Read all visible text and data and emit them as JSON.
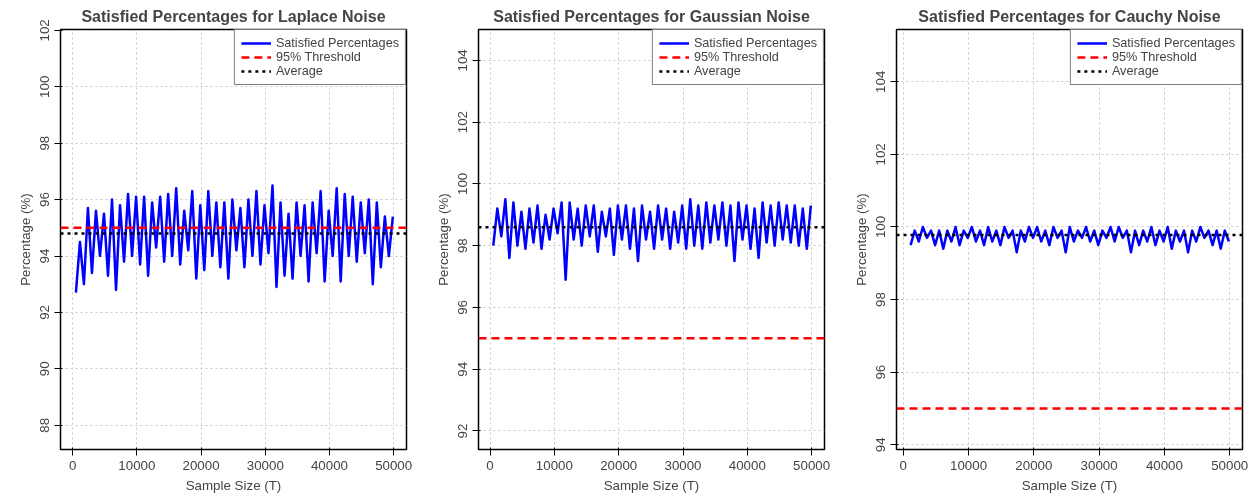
{
  "chart_data": [
    {
      "type": "line",
      "title": "Satisfied Percentages for Laplace Noise",
      "xlabel": "Sample Size (T)",
      "ylabel": "Percentage (%)",
      "xlim": [
        -1900,
        52000
      ],
      "ylim": [
        87.14,
        102.03
      ],
      "xticks": [
        0,
        10000,
        20000,
        30000,
        40000,
        50000
      ],
      "yticks": [
        88,
        90,
        92,
        94,
        96,
        98,
        100,
        102
      ],
      "grid": true,
      "legend": "top right",
      "line_style": "solid",
      "x": [
        500,
        1125,
        1750,
        2375,
        3000,
        3625,
        4250,
        4875,
        5500,
        6125,
        6750,
        7375,
        8000,
        8625,
        9250,
        9875,
        10500,
        11125,
        11750,
        12375,
        13000,
        13625,
        14250,
        14875,
        15500,
        16125,
        16750,
        17375,
        18000,
        18625,
        19250,
        19875,
        20500,
        21125,
        21750,
        22375,
        23000,
        23625,
        24250,
        24875,
        25500,
        26125,
        26750,
        27375,
        28000,
        28625,
        29250,
        29875,
        30500,
        31125,
        31750,
        32375,
        33000,
        33625,
        34250,
        34875,
        35500,
        36125,
        36750,
        37375,
        38000,
        38625,
        39250,
        39875,
        40500,
        41125,
        41750,
        42375,
        43000,
        43625,
        44250,
        44875,
        45500,
        46125,
        46750,
        47375,
        48000,
        48625,
        49250,
        49875
      ],
      "series": [
        {
          "name": "Satisfied Percentages",
          "color": "#0000ff",
          "values": [
            92.7,
            94.5,
            93.0,
            95.7,
            93.4,
            95.6,
            94.0,
            95.5,
            93.3,
            96.0,
            92.8,
            95.8,
            93.8,
            96.2,
            94.0,
            96.1,
            93.7,
            96.1,
            93.3,
            95.9,
            94.3,
            96.1,
            93.8,
            96.2,
            94.0,
            96.4,
            93.7,
            95.6,
            94.2,
            96.3,
            93.2,
            95.8,
            93.5,
            96.3,
            94.0,
            95.9,
            93.6,
            95.9,
            93.2,
            96.0,
            94.2,
            95.7,
            93.6,
            96.0,
            94.0,
            96.3,
            93.7,
            95.8,
            94.1,
            96.5,
            92.9,
            95.9,
            93.3,
            95.5,
            93.2,
            95.9,
            94.0,
            95.8,
            93.1,
            95.9,
            94.1,
            96.3,
            93.1,
            95.6,
            94.0,
            96.4,
            93.1,
            96.2,
            94.0,
            96.1,
            93.8,
            95.9,
            94.1,
            96.0,
            93.0,
            95.9,
            93.6,
            95.4,
            94.0,
            95.4
          ]
        }
      ],
      "ref_lines": [
        {
          "axis": "y",
          "value": 95,
          "label": "95% Threshold",
          "color": "#ff0000",
          "line_style": "dashed"
        },
        {
          "axis": "y",
          "value": 94.8,
          "label": "Average",
          "color": "#000000",
          "line_style": "dotted"
        }
      ]
    },
    {
      "type": "line",
      "title": "Satisfied Percentages for Gaussian Noise",
      "xlabel": "Sample Size (T)",
      "ylabel": "Percentage (%)",
      "xlim": [
        -1800,
        52000
      ],
      "ylim": [
        91.4,
        105.0
      ],
      "xticks": [
        0,
        10000,
        20000,
        30000,
        40000,
        50000
      ],
      "yticks": [
        92,
        94,
        96,
        98,
        100,
        102,
        104
      ],
      "grid": true,
      "legend": "top right",
      "line_style": "solid",
      "x": [
        500,
        1125,
        1750,
        2375,
        3000,
        3625,
        4250,
        4875,
        5500,
        6125,
        6750,
        7375,
        8000,
        8625,
        9250,
        9875,
        10500,
        11125,
        11750,
        12375,
        13000,
        13625,
        14250,
        14875,
        15500,
        16125,
        16750,
        17375,
        18000,
        18625,
        19250,
        19875,
        20500,
        21125,
        21750,
        22375,
        23000,
        23625,
        24250,
        24875,
        25500,
        26125,
        26750,
        27375,
        28000,
        28625,
        29250,
        29875,
        30500,
        31125,
        31750,
        32375,
        33000,
        33625,
        34250,
        34875,
        35500,
        36125,
        36750,
        37375,
        38000,
        38625,
        39250,
        39875,
        40500,
        41125,
        41750,
        42375,
        43000,
        43625,
        44250,
        44875,
        45500,
        46125,
        46750,
        47375,
        48000,
        48625,
        49250,
        49875
      ],
      "series": [
        {
          "name": "Satisfied Percentages",
          "color": "#0000ff",
          "values": [
            98.0,
            99.2,
            98.3,
            99.5,
            97.6,
            99.4,
            98.0,
            99.1,
            97.9,
            99.2,
            98.1,
            99.3,
            97.9,
            99.0,
            98.2,
            99.2,
            98.4,
            99.4,
            96.9,
            99.4,
            98.2,
            99.2,
            98.0,
            99.3,
            98.3,
            99.3,
            97.8,
            99.1,
            98.3,
            99.2,
            97.7,
            99.3,
            98.2,
            99.3,
            97.9,
            99.2,
            97.5,
            99.3,
            98.2,
            99.1,
            97.9,
            99.3,
            98.2,
            99.2,
            97.9,
            99.1,
            98.1,
            99.3,
            97.9,
            99.5,
            98.0,
            99.3,
            97.9,
            99.4,
            98.1,
            99.3,
            98.2,
            99.4,
            98.0,
            99.3,
            97.5,
            99.4,
            98.2,
            99.3,
            97.9,
            99.2,
            97.6,
            99.4,
            98.1,
            99.3,
            98.0,
            99.4,
            98.2,
            99.3,
            98.1,
            99.3,
            98.0,
            99.2,
            97.9,
            99.3
          ]
        }
      ],
      "ref_lines": [
        {
          "axis": "y",
          "value": 95,
          "label": "95% Threshold",
          "color": "#ff0000",
          "line_style": "dashed"
        },
        {
          "axis": "y",
          "value": 98.6,
          "label": "Average",
          "color": "#000000",
          "line_style": "dotted"
        }
      ]
    },
    {
      "type": "line",
      "title": "Satisfied Percentages for Cauchy Noise",
      "xlabel": "Sample Size (T)",
      "ylabel": "Percentage (%)",
      "xlim": [
        -1040,
        51960
      ],
      "ylim": [
        93.87,
        105.44
      ],
      "xticks": [
        0,
        10000,
        20000,
        30000,
        40000,
        50000
      ],
      "yticks": [
        94,
        96,
        98,
        100,
        102,
        104
      ],
      "grid": true,
      "legend": "top right",
      "line_style": "solid",
      "x": [
        1125,
        1750,
        2375,
        3000,
        3625,
        4250,
        4875,
        5500,
        6125,
        6750,
        7375,
        8000,
        8625,
        9250,
        9875,
        10500,
        11125,
        11750,
        12375,
        13000,
        13625,
        14250,
        14875,
        15500,
        16125,
        16750,
        17375,
        18000,
        18625,
        19250,
        19875,
        20500,
        21125,
        21750,
        22375,
        23000,
        23625,
        24250,
        24875,
        25500,
        26125,
        26750,
        27375,
        28000,
        28625,
        29250,
        29875,
        30500,
        31125,
        31750,
        32375,
        33000,
        33625,
        34250,
        34875,
        35500,
        36125,
        36750,
        37375,
        38000,
        38625,
        39250,
        39875,
        40500,
        41125,
        41750,
        42375,
        43000,
        43625,
        44250,
        44875,
        45500,
        46125,
        46750,
        47375,
        48000,
        48625,
        49250,
        49875
      ],
      "series": [
        {
          "name": "Satisfied Percentages",
          "color": "#0000ff",
          "values": [
            99.5,
            99.9,
            99.6,
            100.0,
            99.7,
            99.9,
            99.5,
            99.9,
            99.4,
            99.9,
            99.6,
            100.0,
            99.5,
            99.9,
            99.7,
            100.0,
            99.6,
            99.9,
            99.5,
            100.0,
            99.6,
            99.9,
            99.5,
            100.0,
            99.7,
            99.9,
            99.3,
            99.9,
            99.6,
            100.0,
            99.7,
            100.0,
            99.6,
            99.9,
            99.5,
            100.0,
            99.7,
            99.9,
            99.3,
            100.0,
            99.6,
            99.9,
            99.7,
            100.0,
            99.6,
            99.9,
            99.5,
            99.9,
            99.7,
            100.0,
            99.6,
            100.0,
            99.7,
            99.9,
            99.3,
            99.9,
            99.5,
            99.9,
            99.6,
            100.0,
            99.5,
            99.9,
            99.6,
            100.0,
            99.4,
            99.9,
            99.6,
            99.9,
            99.3,
            99.9,
            99.6,
            100.0,
            99.7,
            99.9,
            99.5,
            99.9,
            99.4,
            99.9,
            99.6
          ]
        }
      ],
      "ref_lines": [
        {
          "axis": "y",
          "value": 95,
          "label": "95% Threshold",
          "color": "#ff0000",
          "line_style": "dashed"
        },
        {
          "axis": "y",
          "value": 99.78,
          "label": "Average",
          "color": "#000000",
          "line_style": "dotted"
        }
      ]
    }
  ]
}
